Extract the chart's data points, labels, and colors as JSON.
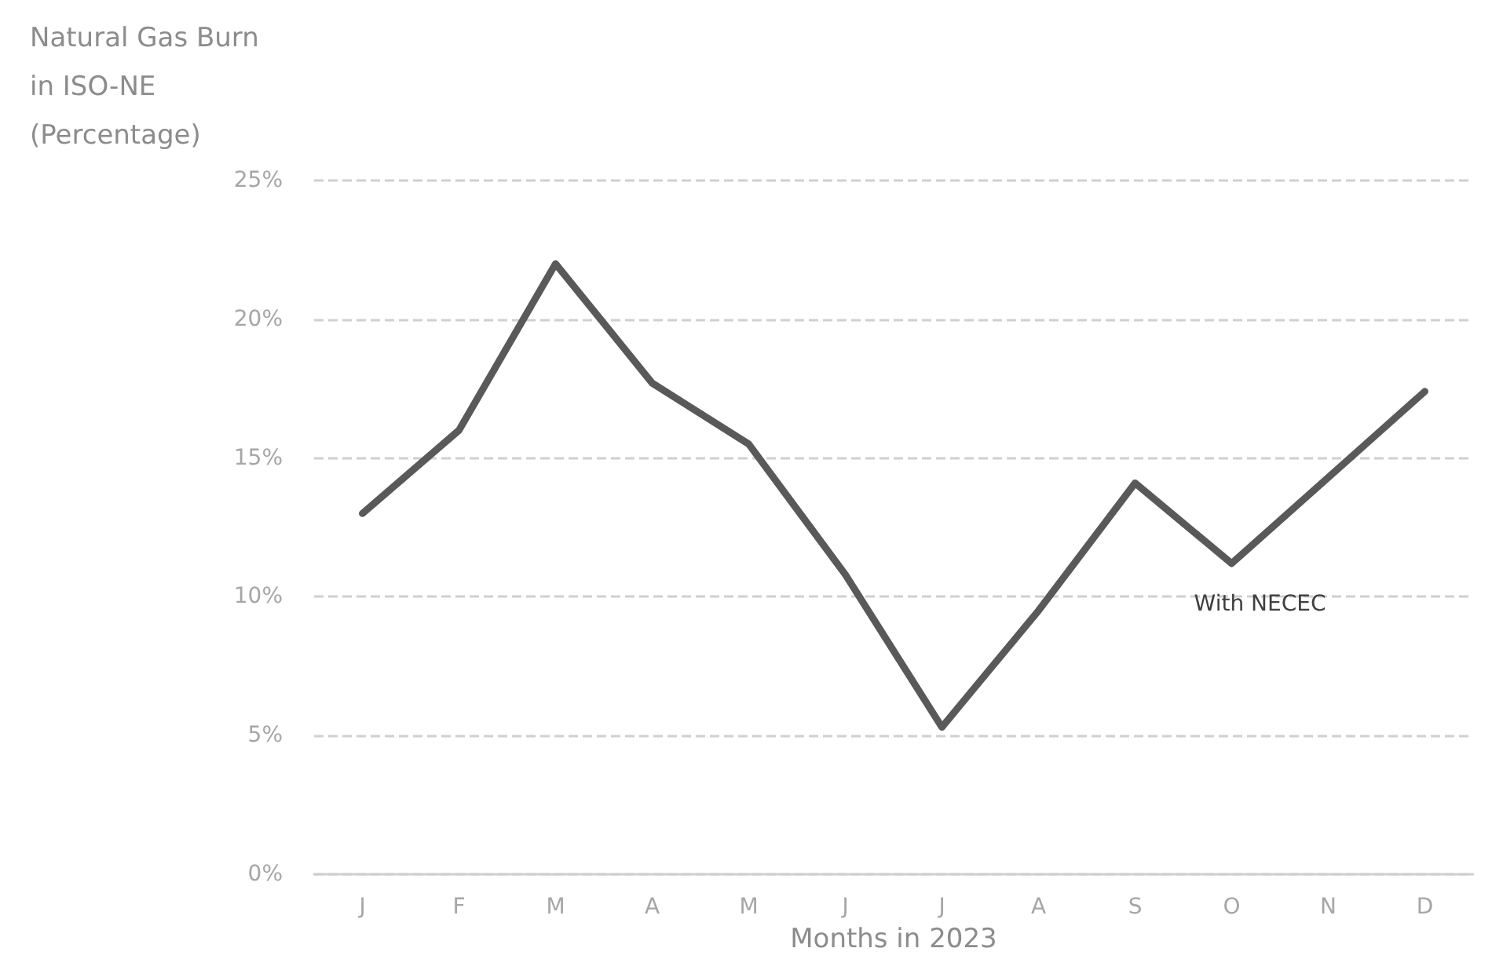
{
  "chart_data": {
    "type": "line",
    "ylabel": "Natural Gas Burn\nin ISO-NE\n(Percentage)",
    "xlabel": "Months in 2023",
    "categories": [
      "J",
      "F",
      "M",
      "A",
      "M",
      "J",
      "J",
      "A",
      "S",
      "O",
      "N",
      "D"
    ],
    "series": [
      {
        "name": "With NECEC",
        "color": "#595959",
        "values": [
          13,
          16,
          22,
          17.7,
          15.5,
          10.8,
          5.3,
          9.5,
          14.1,
          11.2,
          14.3,
          17.4
        ]
      }
    ],
    "ylim": [
      0,
      25
    ],
    "yticks": [
      {
        "value": 0,
        "label": "0%"
      },
      {
        "value": 5,
        "label": "5%"
      },
      {
        "value": 10,
        "label": "10%"
      },
      {
        "value": 15,
        "label": "15%"
      },
      {
        "value": 20,
        "label": "20%"
      },
      {
        "value": 25,
        "label": "25%"
      }
    ],
    "grid": "y",
    "legend": false,
    "marker": "none",
    "line_style": "solid"
  }
}
